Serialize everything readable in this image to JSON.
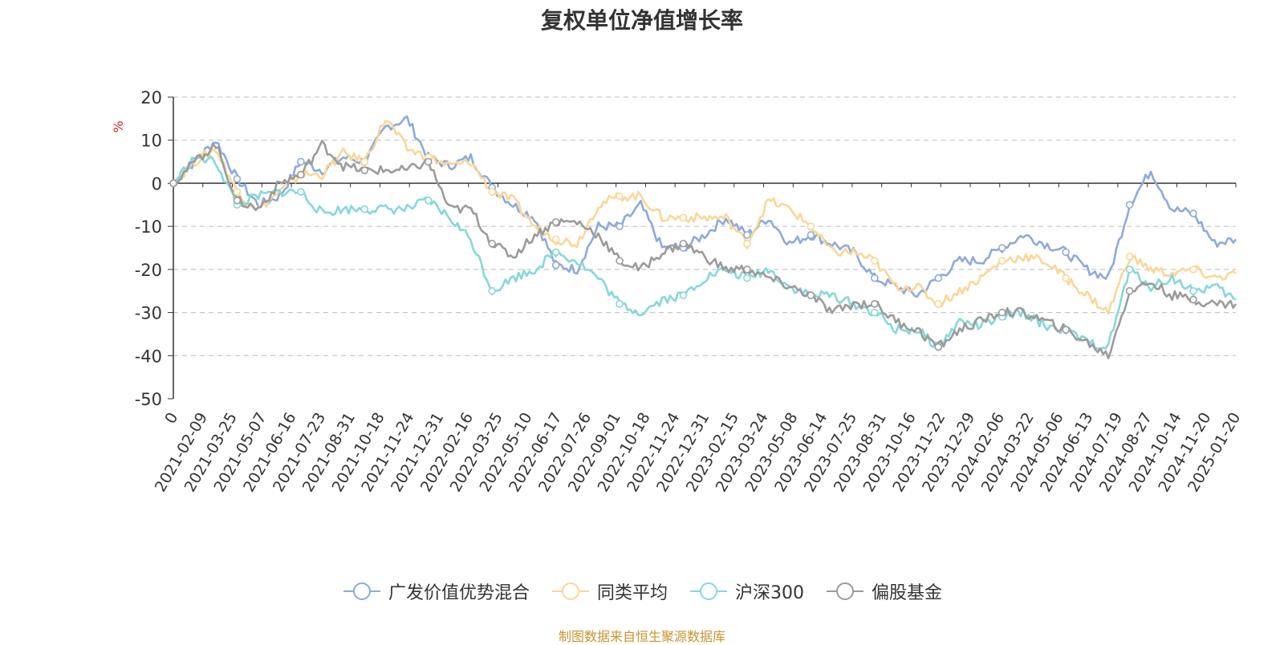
{
  "title": "复权单位净值增长率",
  "source_note": "制图数据来自恒生聚源数据库",
  "colors": {
    "广发价值优势混合": "#8eaadb",
    "同类平均": "#fad797",
    "沪深300": "#88d7d8",
    "偏股基金": "#9b9b9b",
    "axis": "#333333",
    "grid": "#bbbbbb",
    "unit": "#e02020"
  },
  "chart_data": {
    "type": "line",
    "title": "复权单位净值增长率",
    "ylabel": "%",
    "ylim": [
      -50,
      20
    ],
    "yticks": [
      20,
      10,
      0,
      -10,
      -20,
      -30,
      -40,
      -50
    ],
    "grid": true,
    "legend_position": "bottom",
    "x_tick_labels": [
      "0",
      "2021-02-09",
      "2021-03-25",
      "2021-05-07",
      "2021-06-16",
      "2021-07-23",
      "2021-08-31",
      "2021-10-18",
      "2021-11-24",
      "2021-12-31",
      "2022-02-16",
      "2022-03-25",
      "2022-05-10",
      "2022-06-17",
      "2022-07-26",
      "2022-09-01",
      "2022-10-18",
      "2022-11-24",
      "2022-12-31",
      "2023-02-15",
      "2023-03-24",
      "2023-05-08",
      "2023-06-14",
      "2023-07-25",
      "2023-08-31",
      "2023-10-16",
      "2023-11-22",
      "2023-12-29",
      "2024-02-06",
      "2024-03-22",
      "2024-05-06",
      "2024-06-13",
      "2024-07-19",
      "2024-08-27",
      "2024-10-14",
      "2024-11-20",
      "2025-01-20"
    ],
    "series": [
      {
        "name": "广发价值优势混合",
        "values": [
          0,
          5,
          10,
          1,
          -5,
          -3,
          5,
          3,
          6,
          5,
          13,
          15,
          6,
          4,
          6,
          -1,
          -5,
          -8,
          -19,
          -20,
          -10,
          -10,
          -5,
          -15,
          -15,
          -12,
          -8,
          -12,
          -8,
          -14,
          -12,
          -14,
          -16,
          -22,
          -24,
          -26,
          -22,
          -18,
          -18,
          -15,
          -12,
          -14,
          -16,
          -20,
          -22,
          -5,
          3,
          -6,
          -7,
          -14,
          -13
        ]
      },
      {
        "name": "同类平均",
        "values": [
          0,
          5,
          8,
          -2,
          -6,
          -2,
          2,
          2,
          7,
          5,
          15,
          8,
          6,
          4,
          5,
          -2,
          -4,
          -10,
          -13,
          -14,
          -5,
          -3,
          -3,
          -8,
          -8,
          -8,
          -8,
          -14,
          -4,
          -6,
          -10,
          -16,
          -16,
          -18,
          -24,
          -24,
          -28,
          -25,
          -22,
          -18,
          -17,
          -18,
          -22,
          -26,
          -30,
          -17,
          -20,
          -21,
          -20,
          -22,
          -21
        ]
      },
      {
        "name": "沪深300",
        "values": [
          0,
          6,
          5,
          -5,
          -3,
          -2,
          -2,
          -7,
          -6,
          -6,
          -6,
          -6,
          -4,
          -8,
          -13,
          -25,
          -22,
          -20,
          -16,
          -18,
          -22,
          -28,
          -30,
          -27,
          -26,
          -22,
          -20,
          -22,
          -20,
          -24,
          -26,
          -26,
          -28,
          -30,
          -34,
          -34,
          -38,
          -32,
          -33,
          -31,
          -30,
          -33,
          -34,
          -37,
          -38,
          -20,
          -24,
          -22,
          -25,
          -24,
          -27
        ]
      },
      {
        "name": "偏股基金",
        "values": [
          0,
          5,
          9,
          -4,
          -6,
          0,
          2,
          9,
          4,
          3,
          3,
          3,
          5,
          -6,
          -6,
          -14,
          -17,
          -12,
          -9,
          -9,
          -12,
          -18,
          -20,
          -16,
          -14,
          -17,
          -20,
          -20,
          -22,
          -24,
          -26,
          -30,
          -28,
          -28,
          -32,
          -34,
          -38,
          -34,
          -32,
          -30,
          -30,
          -32,
          -34,
          -37,
          -40,
          -25,
          -23,
          -26,
          -27,
          -28,
          -28
        ]
      }
    ]
  },
  "legend": [
    {
      "label": "广发价值优势混合",
      "color": "#8eaadb"
    },
    {
      "label": "同类平均",
      "color": "#fad797"
    },
    {
      "label": "沪深300",
      "color": "#88d7d8"
    },
    {
      "label": "偏股基金",
      "color": "#9b9b9b"
    }
  ]
}
